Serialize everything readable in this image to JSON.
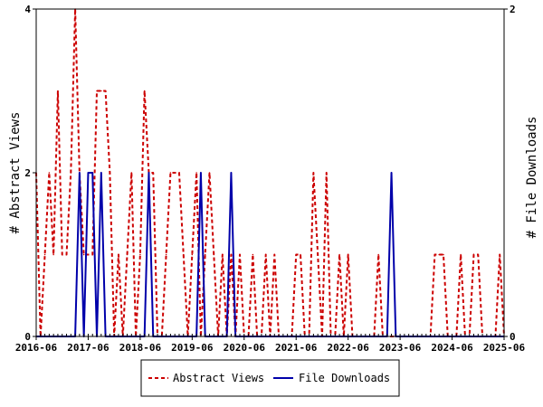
{
  "chart_data": {
    "type": "line",
    "ylabel_left": "# Abstract Views",
    "ylabel_right": "# File Downloads",
    "ylim_left": [
      0,
      4
    ],
    "ylim_right": [
      0,
      2
    ],
    "yticks_left": [
      "0",
      "2",
      "4"
    ],
    "yticks_right": [
      "0",
      "2"
    ],
    "xlim": [
      "2016-06",
      "2025-06"
    ],
    "xticks": [
      "2016-06",
      "2017-06",
      "2018-06",
      "2019-06",
      "2020-06",
      "2021-06",
      "2022-06",
      "2023-06",
      "2024-06",
      "2025-06"
    ],
    "legend_position": "bottom",
    "grid": false,
    "series": [
      {
        "name": "Abstract Views",
        "axis": "left",
        "color": "#cc0000",
        "style": "dashed",
        "x": [
          "2016-06",
          "2016-07",
          "2016-08",
          "2016-09",
          "2016-10",
          "2016-11",
          "2016-12",
          "2017-01",
          "2017-02",
          "2017-03",
          "2017-04",
          "2017-05",
          "2017-06",
          "2017-07",
          "2017-08",
          "2017-09",
          "2017-10",
          "2017-11",
          "2017-12",
          "2018-01",
          "2018-02",
          "2018-03",
          "2018-04",
          "2018-05",
          "2018-06",
          "2018-07",
          "2018-08",
          "2018-09",
          "2018-10",
          "2018-11",
          "2018-12",
          "2019-01",
          "2019-02",
          "2019-03",
          "2019-04",
          "2019-05",
          "2019-06",
          "2019-07",
          "2019-08",
          "2019-09",
          "2019-10",
          "2019-11",
          "2019-12",
          "2020-01",
          "2020-02",
          "2020-03",
          "2020-04",
          "2020-05",
          "2020-06",
          "2020-07",
          "2020-08",
          "2020-09",
          "2020-10",
          "2020-11",
          "2020-12",
          "2021-01",
          "2021-02",
          "2021-03",
          "2021-04",
          "2021-05",
          "2021-06",
          "2021-07",
          "2021-08",
          "2021-09",
          "2021-10",
          "2021-11",
          "2021-12",
          "2022-01",
          "2022-02",
          "2022-03",
          "2022-04",
          "2022-05",
          "2022-06",
          "2022-07",
          "2022-08",
          "2022-09",
          "2022-10",
          "2022-11",
          "2022-12",
          "2023-01",
          "2023-02",
          "2023-03",
          "2023-04",
          "2023-05",
          "2023-06",
          "2023-07",
          "2023-08",
          "2023-09",
          "2023-10",
          "2023-11",
          "2023-12",
          "2024-01",
          "2024-02",
          "2024-03",
          "2024-04",
          "2024-05",
          "2024-06",
          "2024-07",
          "2024-08",
          "2024-09",
          "2024-10",
          "2024-11",
          "2024-12",
          "2025-01",
          "2025-02",
          "2025-03",
          "2025-04",
          "2025-05",
          "2025-06"
        ],
        "values": [
          2,
          0,
          1,
          2,
          1,
          3,
          1,
          1,
          2,
          4,
          2,
          1,
          1,
          1,
          3,
          3,
          3,
          2,
          0,
          1,
          0,
          1,
          2,
          0,
          1,
          3,
          2,
          2,
          0,
          0,
          1,
          2,
          2,
          2,
          1,
          0,
          1,
          2,
          0,
          1,
          2,
          1,
          0,
          1,
          0,
          1,
          0,
          1,
          0,
          0,
          1,
          0,
          0,
          1,
          0,
          1,
          0,
          0,
          0,
          0,
          1,
          1,
          0,
          0,
          2,
          1,
          0,
          2,
          0,
          0,
          1,
          0,
          1,
          0,
          0,
          0,
          0,
          0,
          0,
          1,
          0,
          0,
          0,
          0,
          0,
          0,
          0,
          0,
          0,
          0,
          0,
          0,
          1,
          1,
          1,
          0,
          0,
          0,
          1,
          0,
          0,
          1,
          1,
          0,
          0,
          0,
          0,
          1,
          0
        ]
      },
      {
        "name": "File Downloads",
        "axis": "right",
        "color": "#0000aa",
        "style": "solid",
        "x": [
          "2016-06",
          "2016-07",
          "2016-08",
          "2016-09",
          "2016-10",
          "2016-11",
          "2016-12",
          "2017-01",
          "2017-02",
          "2017-03",
          "2017-04",
          "2017-05",
          "2017-06",
          "2017-07",
          "2017-08",
          "2017-09",
          "2017-10",
          "2017-11",
          "2017-12",
          "2018-01",
          "2018-02",
          "2018-03",
          "2018-04",
          "2018-05",
          "2018-06",
          "2018-07",
          "2018-08",
          "2018-09",
          "2018-10",
          "2018-11",
          "2018-12",
          "2019-01",
          "2019-02",
          "2019-03",
          "2019-04",
          "2019-05",
          "2019-06",
          "2019-07",
          "2019-08",
          "2019-09",
          "2019-10",
          "2019-11",
          "2019-12",
          "2020-01",
          "2020-02",
          "2020-03",
          "2020-04",
          "2020-05",
          "2020-06",
          "2020-07",
          "2020-08",
          "2020-09",
          "2020-10",
          "2020-11",
          "2020-12",
          "2021-01",
          "2021-02",
          "2021-03",
          "2021-04",
          "2021-05",
          "2021-06",
          "2021-07",
          "2021-08",
          "2021-09",
          "2021-10",
          "2021-11",
          "2021-12",
          "2022-01",
          "2022-02",
          "2022-03",
          "2022-04",
          "2022-05",
          "2022-06",
          "2022-07",
          "2022-08",
          "2022-09",
          "2022-10",
          "2022-11",
          "2022-12",
          "2023-01",
          "2023-02",
          "2023-03",
          "2023-04",
          "2023-05",
          "2023-06",
          "2023-07",
          "2023-08",
          "2023-09",
          "2023-10",
          "2023-11",
          "2023-12",
          "2024-01",
          "2024-02",
          "2024-03",
          "2024-04",
          "2024-05",
          "2024-06",
          "2024-07",
          "2024-08",
          "2024-09",
          "2024-10",
          "2024-11",
          "2024-12",
          "2025-01",
          "2025-02",
          "2025-03",
          "2025-04",
          "2025-05",
          "2025-06"
        ],
        "values": [
          0,
          0,
          0,
          0,
          0,
          0,
          0,
          0,
          0,
          0,
          1,
          0,
          1,
          1,
          0,
          1,
          0,
          0,
          0,
          0,
          0,
          0,
          0,
          0,
          0,
          0,
          1,
          0,
          0,
          0,
          0,
          0,
          0,
          0,
          0,
          0,
          0,
          0,
          1,
          0,
          0,
          0,
          0,
          0,
          0,
          1,
          0,
          0,
          0,
          0,
          0,
          0,
          0,
          0,
          0,
          0,
          0,
          0,
          0,
          0,
          0,
          0,
          0,
          0,
          0,
          0,
          0,
          0,
          0,
          0,
          0,
          0,
          0,
          0,
          0,
          0,
          0,
          0,
          0,
          0,
          0,
          0,
          1,
          0,
          0,
          0,
          0,
          0,
          0,
          0,
          0,
          0,
          0,
          0,
          0,
          0,
          0,
          0,
          0,
          0,
          0,
          0,
          0,
          0,
          0,
          0,
          0,
          0,
          0
        ]
      }
    ]
  },
  "legend": {
    "items": [
      {
        "label": "Abstract Views",
        "color": "#cc0000",
        "style": "dashed"
      },
      {
        "label": "File Downloads",
        "color": "#0000aa",
        "style": "solid"
      }
    ]
  }
}
